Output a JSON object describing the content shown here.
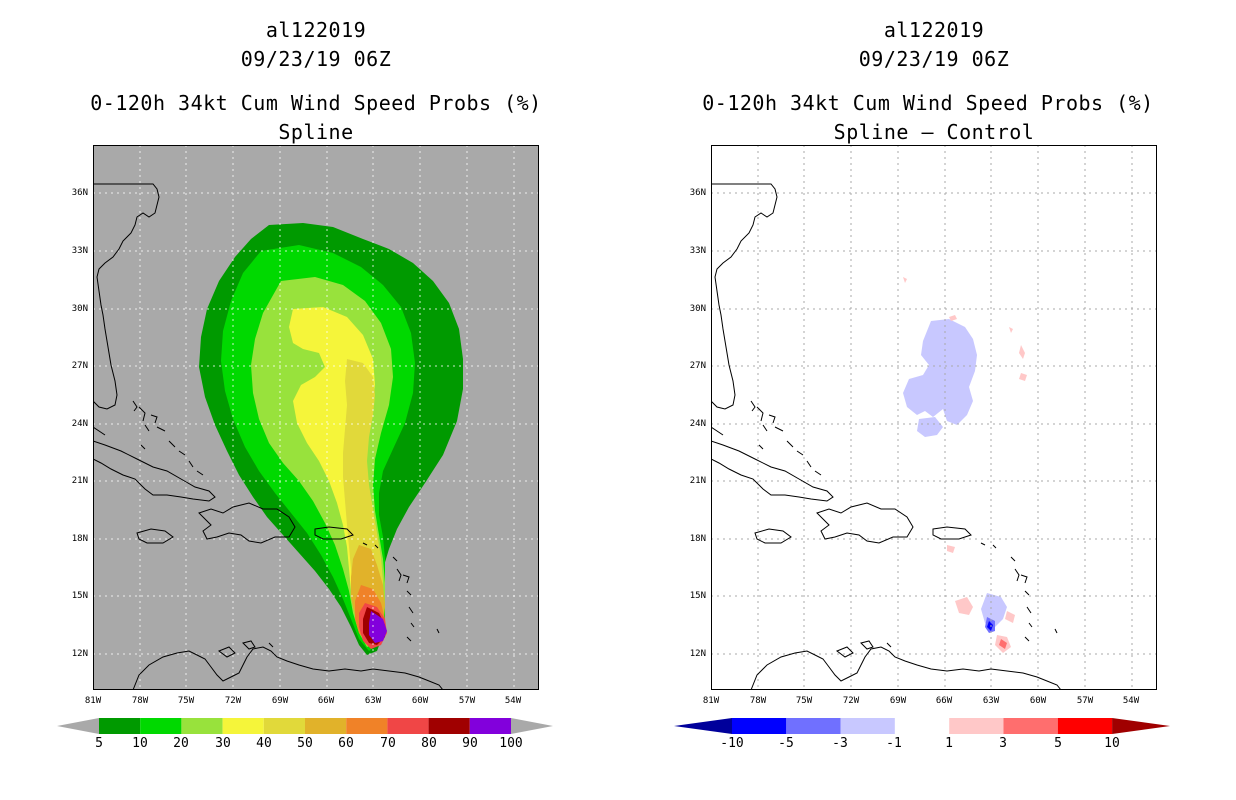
{
  "left_panel": {
    "storm_id": "al122019",
    "datetime": "09/23/19 06Z",
    "product": "0-120h 34kt Cum Wind Speed Probs (%)",
    "subtitle": "Spline",
    "lat_labels": [
      "36N",
      "33N",
      "30N",
      "27N",
      "24N",
      "21N",
      "18N",
      "15N",
      "12N"
    ],
    "lon_labels": [
      "81W",
      "78W",
      "75W",
      "72W",
      "69W",
      "66W",
      "63W",
      "60W",
      "57W",
      "54W"
    ],
    "colorbar": {
      "labels": [
        "5",
        "10",
        "20",
        "30",
        "40",
        "50",
        "60",
        "70",
        "80",
        "90",
        "100"
      ],
      "colors": [
        "#009a00",
        "#00d900",
        "#98e23c",
        "#f5f53a",
        "#e1d93a",
        "#e1b22a",
        "#f08228",
        "#f04646",
        "#a00000",
        "#8200dc"
      ],
      "background": "#a9a9a9"
    }
  },
  "right_panel": {
    "storm_id": "al122019",
    "datetime": "09/23/19 06Z",
    "product": "0-120h 34kt Cum Wind Speed Probs (%)",
    "subtitle": "Spline – Control",
    "lat_labels": [
      "36N",
      "33N",
      "30N",
      "27N",
      "24N",
      "21N",
      "18N",
      "15N",
      "12N"
    ],
    "lon_labels": [
      "81W",
      "78W",
      "75W",
      "72W",
      "69W",
      "66W",
      "63W",
      "60W",
      "57W",
      "54W"
    ],
    "colorbar": {
      "labels": [
        "-10",
        "-5",
        "-3",
        "-1",
        "1",
        "3",
        "5",
        "10"
      ],
      "colors": [
        "#00009b",
        "#0000ff",
        "#7070ff",
        "#c8c8ff",
        "#ffffff",
        "#ffc8c8",
        "#ff6e6e",
        "#ff0000",
        "#a00000"
      ]
    }
  }
}
